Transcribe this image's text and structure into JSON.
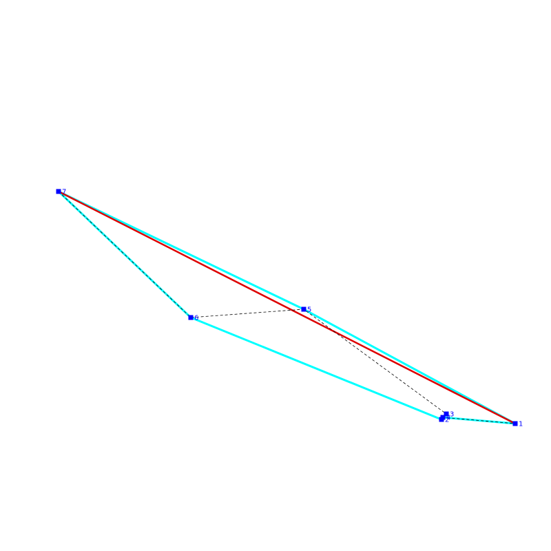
{
  "colors": {
    "hull_edge": "#00ffff",
    "highlight_edge": "#dd0000",
    "dashed_path": "#000000",
    "vertex": "#0000ff",
    "vertex_label": "#0000ff",
    "background": "#ffffff"
  },
  "vertices": [
    {
      "id": "1",
      "label": "1"
    },
    {
      "id": "2",
      "label": "2"
    },
    {
      "id": "3",
      "label": "3"
    },
    {
      "id": "4",
      "label": "4"
    },
    {
      "id": "5",
      "label": "5"
    },
    {
      "id": "6",
      "label": "6"
    },
    {
      "id": "7",
      "label": "7"
    }
  ],
  "polygon_edges": [
    [
      "1",
      "5"
    ],
    [
      "5",
      "7"
    ],
    [
      "7",
      "6"
    ],
    [
      "6",
      "2"
    ],
    [
      "2",
      "4"
    ],
    [
      "4",
      "1"
    ]
  ],
  "highlight_edges": [
    [
      "7",
      "1"
    ]
  ],
  "dashed_path": [
    "7",
    "6",
    "5",
    "3",
    "4",
    "1"
  ]
}
